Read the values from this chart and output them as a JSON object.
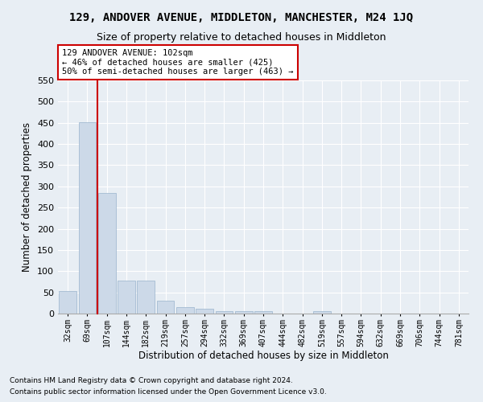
{
  "title": "129, ANDOVER AVENUE, MIDDLETON, MANCHESTER, M24 1JQ",
  "subtitle": "Size of property relative to detached houses in Middleton",
  "xlabel": "Distribution of detached houses by size in Middleton",
  "ylabel": "Number of detached properties",
  "categories": [
    "32sqm",
    "69sqm",
    "107sqm",
    "144sqm",
    "182sqm",
    "219sqm",
    "257sqm",
    "294sqm",
    "332sqm",
    "369sqm",
    "407sqm",
    "444sqm",
    "482sqm",
    "519sqm",
    "557sqm",
    "594sqm",
    "632sqm",
    "669sqm",
    "706sqm",
    "744sqm",
    "781sqm"
  ],
  "values": [
    53,
    452,
    284,
    78,
    78,
    30,
    16,
    11,
    5,
    5,
    6,
    0,
    0,
    5,
    0,
    0,
    0,
    0,
    0,
    0,
    0
  ],
  "bar_color": "#ccd9e8",
  "bar_edge_color": "#99b3cc",
  "vline_color": "#cc0000",
  "annotation_text": "129 ANDOVER AVENUE: 102sqm\n← 46% of detached houses are smaller (425)\n50% of semi-detached houses are larger (463) →",
  "annotation_box_facecolor": "#ffffff",
  "annotation_box_edgecolor": "#cc0000",
  "ylim": [
    0,
    550
  ],
  "yticks": [
    0,
    50,
    100,
    150,
    200,
    250,
    300,
    350,
    400,
    450,
    500,
    550
  ],
  "bg_color": "#e8eef4",
  "grid_color": "#ffffff",
  "footnote1": "Contains HM Land Registry data © Crown copyright and database right 2024.",
  "footnote2": "Contains public sector information licensed under the Open Government Licence v3.0.",
  "title_fontsize": 10,
  "subtitle_fontsize": 9,
  "xlabel_fontsize": 8.5,
  "ylabel_fontsize": 8.5,
  "annot_fontsize": 7.5,
  "footnote_fontsize": 6.5
}
